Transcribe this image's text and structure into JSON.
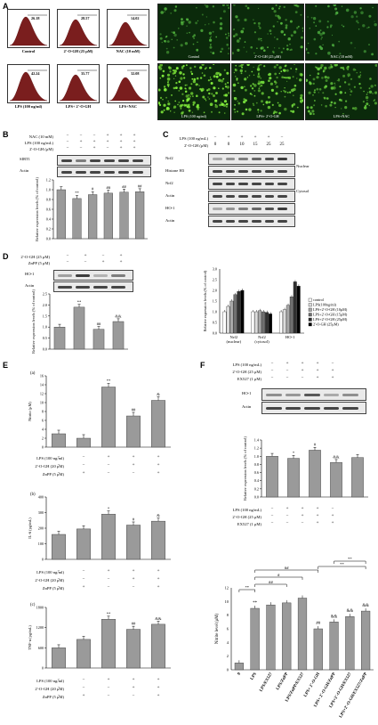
{
  "panels": {
    "A": {
      "letter": "A",
      "flow": [
        {
          "value": "26.18",
          "caption": "Control"
        },
        {
          "value": "28.57",
          "caption": "2'-O-GH (25 μM)"
        },
        {
          "value": "14.02",
          "caption": "NAC (10 mM)"
        },
        {
          "value": "42.24",
          "caption": "LPS (100 ng/ml)"
        },
        {
          "value": "35.77",
          "caption": "LPS+ 2'-O-GH"
        },
        {
          "value": "32.08",
          "caption": "LPS+NAC"
        }
      ],
      "images": [
        {
          "caption": "Control",
          "intensity": 0.25
        },
        {
          "caption": "2'-O-GH (25 μM)",
          "intensity": 0.3
        },
        {
          "caption": "NAC (10 mM)",
          "intensity": 0.15
        },
        {
          "caption": "LPS (100 ng/ml)",
          "intensity": 0.9
        },
        {
          "caption": "LPS+ 2'-O-GH",
          "intensity": 0.7
        },
        {
          "caption": "LPS+NAC",
          "intensity": 0.5
        }
      ]
    },
    "B": {
      "letter": "B",
      "conditions": [
        {
          "label": "NAC (10 mM)",
          "signs": [
            "−",
            "−",
            "−",
            "+",
            "+",
            "+"
          ]
        },
        {
          "label": "LPS (100 ng/mL)",
          "signs": [
            "−",
            "+",
            "+",
            "+",
            "+",
            "+"
          ]
        },
        {
          "label": "2'-O-GH (μM)",
          "signs": [
            "−",
            "−",
            "+",
            "−",
            "+",
            "+"
          ]
        }
      ],
      "blots": [
        "SIRT1",
        "Actin"
      ],
      "chart_ylabel": "Relative expression levels (% of control)",
      "chart_data": {
        "type": "bar",
        "values": [
          1.0,
          0.82,
          0.9,
          0.93,
          0.95,
          0.96
        ],
        "ylim": [
          0.0,
          1.2
        ],
        "yticks": [
          "0.0",
          "0.2",
          "0.4",
          "0.6",
          "0.8",
          "1.0",
          "1.2"
        ],
        "marks": [
          "",
          "**",
          "#",
          "##",
          "##",
          "##"
        ]
      }
    },
    "C": {
      "letter": "C",
      "conditions": [
        {
          "label": "LPS (100 ng/mL)",
          "signs": [
            "−",
            "+",
            "+",
            "+",
            "+",
            "−"
          ]
        },
        {
          "label": "2'-O-GH (μM)",
          "signs": [
            "0",
            "0",
            "10",
            "15",
            "25",
            "25"
          ]
        }
      ],
      "blots": [
        "Nrf2",
        "Histone H3",
        "Nrf2",
        "Actin",
        "HO-1",
        "Actin"
      ],
      "fractions": [
        "Nuclear",
        "Cytosol"
      ],
      "chart_ylabel": "Relative expression levels (% of control)",
      "legend": [
        "control",
        "LPS(100ng/ml)",
        "LPS+2'-O-GH (10μM)",
        "LPS+2'-O-GH (15μM)",
        "LPS+2'-O-GH (25μM)",
        "2'-O-GH (25μM)"
      ],
      "chart_data": {
        "type": "bar",
        "categories": [
          "Nrf2 (nuclear)",
          "Nrf2 (cytosol)",
          "HO-1"
        ],
        "series": [
          {
            "name": "control",
            "values": [
              1.0,
              1.0,
              1.0
            ],
            "color": "#ffffff"
          },
          {
            "name": "LPS(100ng/ml)",
            "values": [
              1.25,
              1.0,
              1.1
            ],
            "color": "#dcdcdc"
          },
          {
            "name": "LPS+2'-O-GH (10μM)",
            "values": [
              1.5,
              1.05,
              1.3
            ],
            "color": "#a8a8a8"
          },
          {
            "name": "LPS+2'-O-GH (15μM)",
            "values": [
              1.8,
              1.0,
              1.7
            ],
            "color": "#707070"
          },
          {
            "name": "LPS+2'-O-GH (25μM)",
            "values": [
              1.95,
              0.97,
              2.4
            ],
            "color": "#303030"
          },
          {
            "name": "2'-O-GH (25μM)",
            "values": [
              2.0,
              0.9,
              2.2
            ],
            "color": "#000000"
          }
        ],
        "ylim": [
          0.0,
          3.0
        ],
        "yticks": [
          "0.0",
          "0.5",
          "1.0",
          "1.5",
          "2.0",
          "2.5",
          "3.0"
        ]
      }
    },
    "D": {
      "letter": "D",
      "conditions": [
        {
          "label": "2'-O-GH (25 μM)",
          "signs": [
            "−",
            "+",
            "−",
            "+"
          ]
        },
        {
          "label": "ZnPP (5 μM)",
          "signs": [
            "−",
            "−",
            "+",
            "+"
          ]
        }
      ],
      "blots": [
        "HO-1",
        "Actin"
      ],
      "chart_ylabel": "Relative expression levels (% of control)",
      "chart_data": {
        "type": "bar",
        "values": [
          1.0,
          1.9,
          0.9,
          1.25
        ],
        "ylim": [
          0.0,
          2.5
        ],
        "yticks": [
          "0.0",
          "0.5",
          "1.0",
          "1.5",
          "2.0",
          "2.5"
        ],
        "marks": [
          "",
          "**",
          "##",
          "&&"
        ]
      }
    },
    "E": {
      "letter": "E",
      "charts": [
        {
          "tag": "(a)",
          "ylabel": "Nitrite (μM)",
          "chart_data": {
            "type": "bar",
            "values": [
              3.0,
              2.0,
              13.5,
              7.0,
              10.5
            ],
            "ylim": [
              0,
              16
            ],
            "yticks": [
              "0",
              "2",
              "4",
              "6",
              "8",
              "10",
              "12",
              "14",
              "16"
            ],
            "marks": [
              "",
              "",
              "**",
              "##",
              "&"
            ]
          }
        },
        {
          "tag": "(b)",
          "ylabel": "IL-6 (pg/mL)",
          "chart_data": {
            "type": "bar",
            "values": [
              160,
              195,
              290,
              220,
              245
            ],
            "ylim": [
              0,
              400
            ],
            "yticks": [
              "0",
              "100",
              "200",
              "300",
              "400"
            ],
            "marks": [
              "",
              "",
              "*",
              "#",
              "&"
            ]
          }
        },
        {
          "tag": "(c)",
          "ylabel": "TNF-α (pg/mL)",
          "chart_data": {
            "type": "bar",
            "values": [
              600,
              850,
              1450,
              1150,
              1300
            ],
            "ylim": [
              0,
              1800
            ],
            "yticks": [
              "0",
              "600",
              "1200",
              "1800"
            ],
            "marks": [
              "",
              "",
              "**",
              "##",
              "&&"
            ]
          }
        }
      ],
      "conditions": [
        {
          "label": "LPS (100 ng/ml)",
          "signs": [
            "−",
            "−",
            "+",
            "+",
            "+"
          ]
        },
        {
          "label": "2'-O-GH (20 μM)",
          "signs": [
            "−",
            "−",
            "−",
            "+",
            "+"
          ]
        },
        {
          "label": "ZnPP (5 μM)",
          "signs": [
            "−",
            "+",
            "−",
            "−",
            "+"
          ]
        }
      ]
    },
    "F": {
      "letter": "F",
      "conditions": [
        {
          "label": "LPS (100 ng/mL)",
          "signs": [
            "−",
            "+",
            "+",
            "+",
            "−"
          ]
        },
        {
          "label": "2'-O-GH (25 μM)",
          "signs": [
            "−",
            "−",
            "+",
            "+",
            "+"
          ]
        },
        {
          "label": "EX527 (1 μM)",
          "signs": [
            "−",
            "−",
            "−",
            "+",
            "+"
          ]
        }
      ],
      "blots": [
        "HO-1",
        "Actin"
      ],
      "chart_ylabel": "Relative expression levels (% of control)",
      "chart_data": {
        "type": "bar",
        "values": [
          1.0,
          0.95,
          1.15,
          0.85,
          0.97
        ],
        "ylim": [
          0.0,
          1.4
        ],
        "yticks": [
          "0.0",
          "0.2",
          "0.4",
          "0.6",
          "0.8",
          "1.0",
          "1.2",
          "1.4"
        ],
        "marks": [
          "",
          "*",
          "#",
          "&&",
          ""
        ]
      },
      "nitrite": {
        "ylabel": "Nitrite level (μM)",
        "chart_data": {
          "type": "bar",
          "categories": [
            "0",
            "LPS",
            "LPS/EX527",
            "LPS/ZnPP",
            "LPS/ZnPP/EX527",
            "LPS+ 2'-O-GH",
            "LPS+ 2'-O-GH/ZnPP",
            "LPS+2'-O-GH/EX527",
            "LPS+2'-O-GH/EX527/ZnPP"
          ],
          "values": [
            1.0,
            9.0,
            9.5,
            9.8,
            10.5,
            6.0,
            7.0,
            7.8,
            8.6
          ],
          "ylim": [
            0,
            12
          ],
          "yticks": [
            "0",
            "2",
            "4",
            "6",
            "8",
            "10",
            "12"
          ],
          "marks": [
            "",
            "**",
            "",
            "",
            "",
            "##",
            "&&",
            "&&",
            "&&"
          ],
          "brackets": [
            "**",
            "##",
            "#",
            "##",
            "**",
            "**"
          ]
        }
      }
    }
  }
}
